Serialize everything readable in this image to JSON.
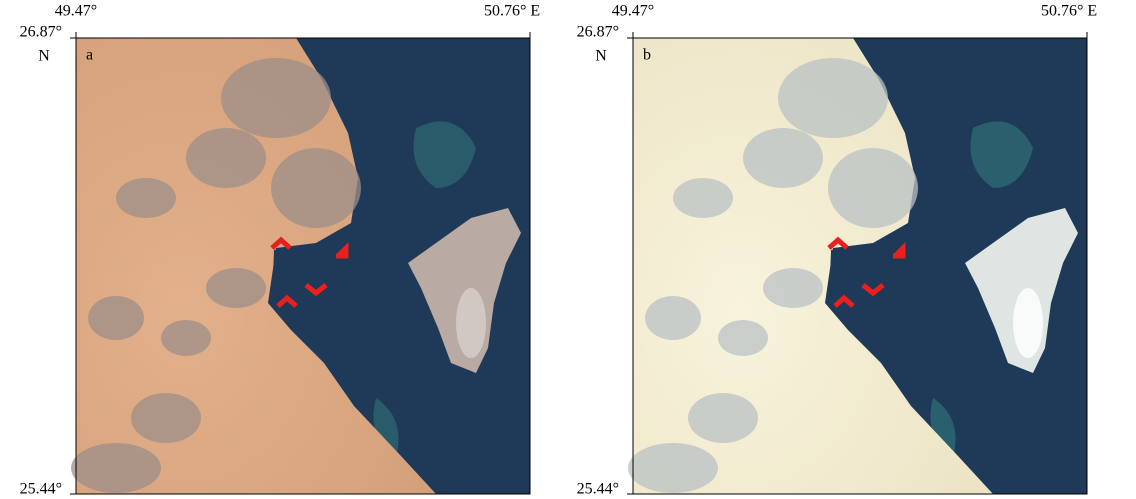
{
  "panels": [
    {
      "label": "a",
      "lon_left": "49.47°",
      "lon_right": "50.76° E",
      "lat_top": "26.87°",
      "lat_unit": "N",
      "lat_bottom": "25.44°"
    },
    {
      "label": "b",
      "lon_left": "49.47°",
      "lon_right": "50.76° E",
      "lat_top": "26.87°",
      "lat_unit": "N",
      "lat_bottom": "25.44°"
    }
  ]
}
